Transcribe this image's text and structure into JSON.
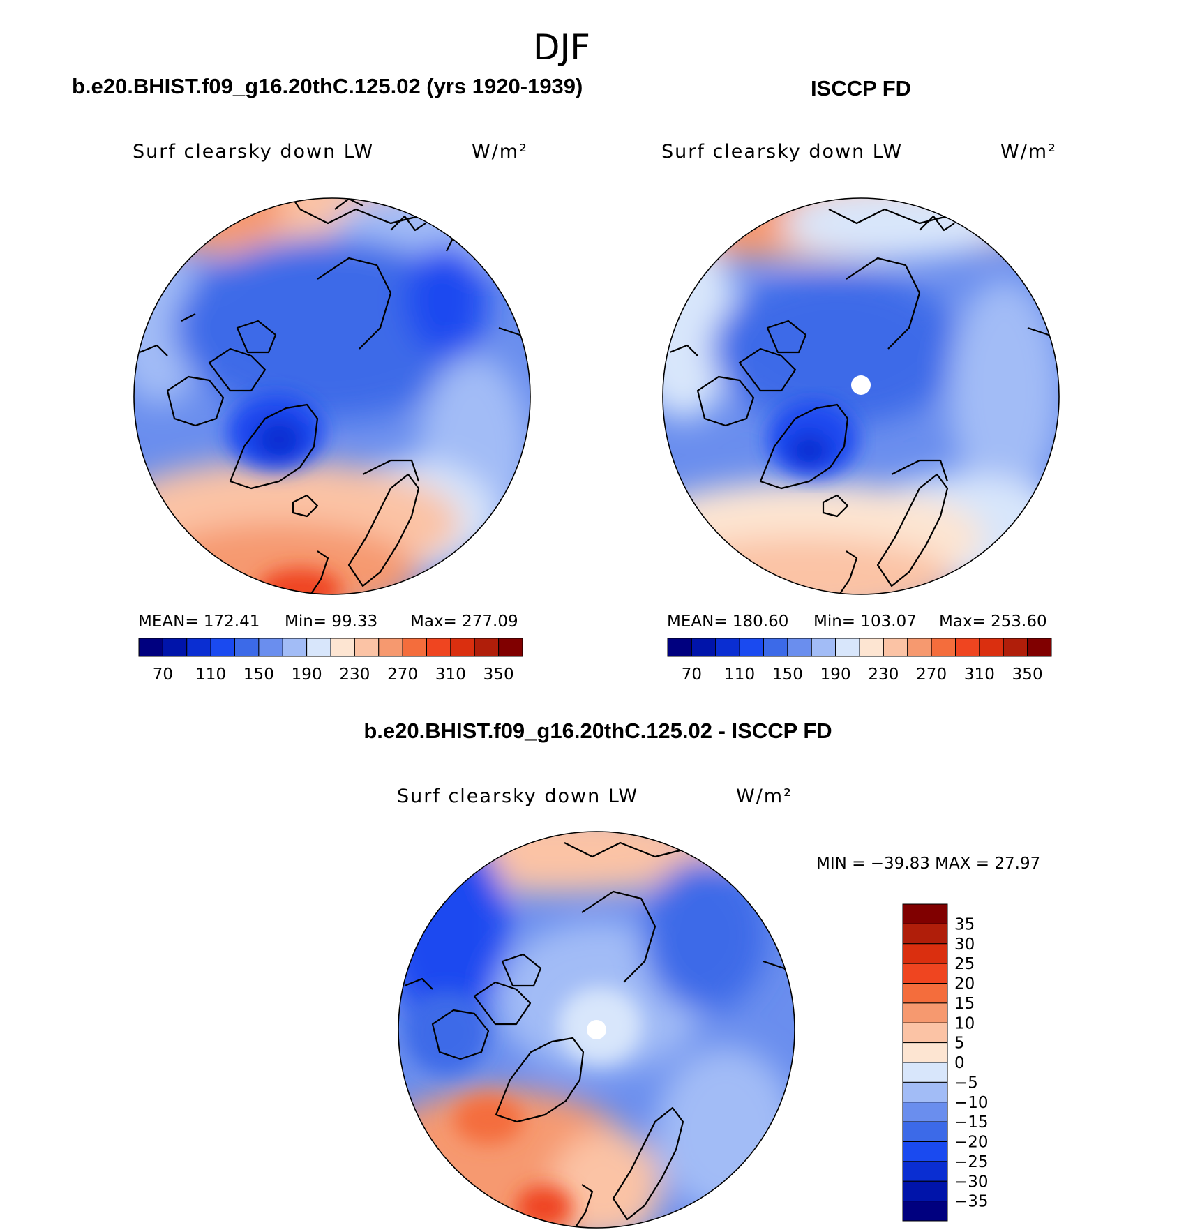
{
  "figure": {
    "title": "DJF",
    "palette": [
      "#00007f",
      "#0014aa",
      "#0a2ed2",
      "#1a4af0",
      "#3c6ae8",
      "#6a8eee",
      "#a2bcf6",
      "#d8e6fb",
      "#fde5d2",
      "#fbc3a5",
      "#f6996f",
      "#f46d3c",
      "#ef4520",
      "#da2f0f",
      "#b01e0a",
      "#800000"
    ]
  },
  "chart_data": [
    {
      "type": "heatmap",
      "panel": "left",
      "header": "b.e20.BHIST.f09_g16.20thC.125.02 (yrs 1920-1939)",
      "label": "Surf clearsky down LW",
      "units": "W/m²",
      "projection": "north-polar-stereographic",
      "stats": {
        "mean": "MEAN= 172.41",
        "min": "Min=  99.33",
        "max": "Max= 277.09"
      },
      "mean": 172.41,
      "min": 99.33,
      "max": 277.09,
      "levels": [
        70,
        90,
        110,
        130,
        150,
        170,
        190,
        210,
        230,
        250,
        270,
        290,
        310,
        330,
        350
      ],
      "tick_labels": [
        "70",
        "110",
        "150",
        "190",
        "230",
        "270",
        "310",
        "350"
      ]
    },
    {
      "type": "heatmap",
      "panel": "right",
      "header": "ISCCP FD",
      "label": "Surf clearsky down LW",
      "units": "W/m²",
      "projection": "north-polar-stereographic",
      "stats": {
        "mean": "MEAN= 180.60",
        "min": "Min= 103.07",
        "max": "Max= 253.60"
      },
      "mean": 180.6,
      "min": 103.07,
      "max": 253.6,
      "levels": [
        70,
        90,
        110,
        130,
        150,
        170,
        190,
        210,
        230,
        250,
        270,
        290,
        310,
        330,
        350
      ],
      "tick_labels": [
        "70",
        "110",
        "150",
        "190",
        "230",
        "270",
        "310",
        "350"
      ]
    },
    {
      "type": "heatmap",
      "panel": "bottom",
      "header": "b.e20.BHIST.f09_g16.20thC.125.02 - ISCCP FD",
      "label": "Surf clearsky down LW",
      "units": "W/m²",
      "projection": "north-polar-stereographic",
      "minmax_text": "MIN = −39.83 MAX =  27.97",
      "min": -39.83,
      "max": 27.97,
      "levels": [
        -35,
        -30,
        -25,
        -20,
        -15,
        -10,
        -5,
        0,
        5,
        10,
        15,
        20,
        25,
        30,
        35
      ],
      "tick_labels": [
        "35",
        "30",
        "25",
        "20",
        "15",
        "10",
        "5",
        "0",
        "−5",
        "−10",
        "−15",
        "−20",
        "−25",
        "−30",
        "−35"
      ]
    }
  ]
}
